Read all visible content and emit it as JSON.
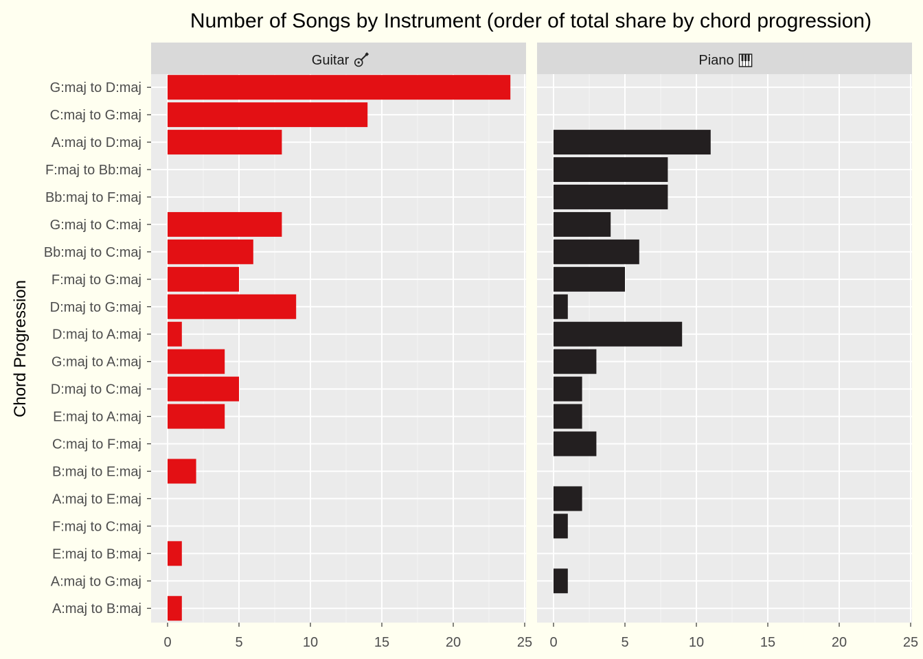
{
  "chart_data": {
    "type": "bar",
    "orientation": "horizontal",
    "title": "Number of Songs by Instrument (order of total share by chord progression)",
    "ylabel": "Chord Progression",
    "xlabel": "",
    "xlim": [
      0,
      25
    ],
    "x_ticks": [
      "0",
      "5",
      "10",
      "15",
      "20",
      "25"
    ],
    "grid": true,
    "categories": [
      "G:maj to D:maj",
      "C:maj to G:maj",
      "A:maj to D:maj",
      "F:maj to Bb:maj",
      "Bb:maj to F:maj",
      "G:maj to C:maj",
      "Bb:maj to C:maj",
      "F:maj to G:maj",
      "D:maj to G:maj",
      "D:maj to A:maj",
      "G:maj to A:maj",
      "D:maj to C:maj",
      "E:maj to A:maj",
      "C:maj to F:maj",
      "B:maj to E:maj",
      "A:maj to E:maj",
      "F:maj to C:maj",
      "E:maj to B:maj",
      "A:maj to G:maj",
      "A:maj to B:maj"
    ],
    "panels": [
      {
        "name": "Guitar",
        "icon": "guitar-icon",
        "color": "#e31014",
        "values": [
          24,
          14,
          8,
          null,
          null,
          8,
          6,
          5,
          9,
          1,
          4,
          5,
          4,
          null,
          2,
          null,
          null,
          1,
          null,
          1
        ]
      },
      {
        "name": "Piano",
        "icon": "piano-icon",
        "color": "#231f20",
        "values": [
          null,
          null,
          11,
          8,
          8,
          4,
          6,
          5,
          1,
          9,
          3,
          2,
          2,
          3,
          null,
          2,
          1,
          null,
          1,
          null
        ]
      }
    ]
  }
}
